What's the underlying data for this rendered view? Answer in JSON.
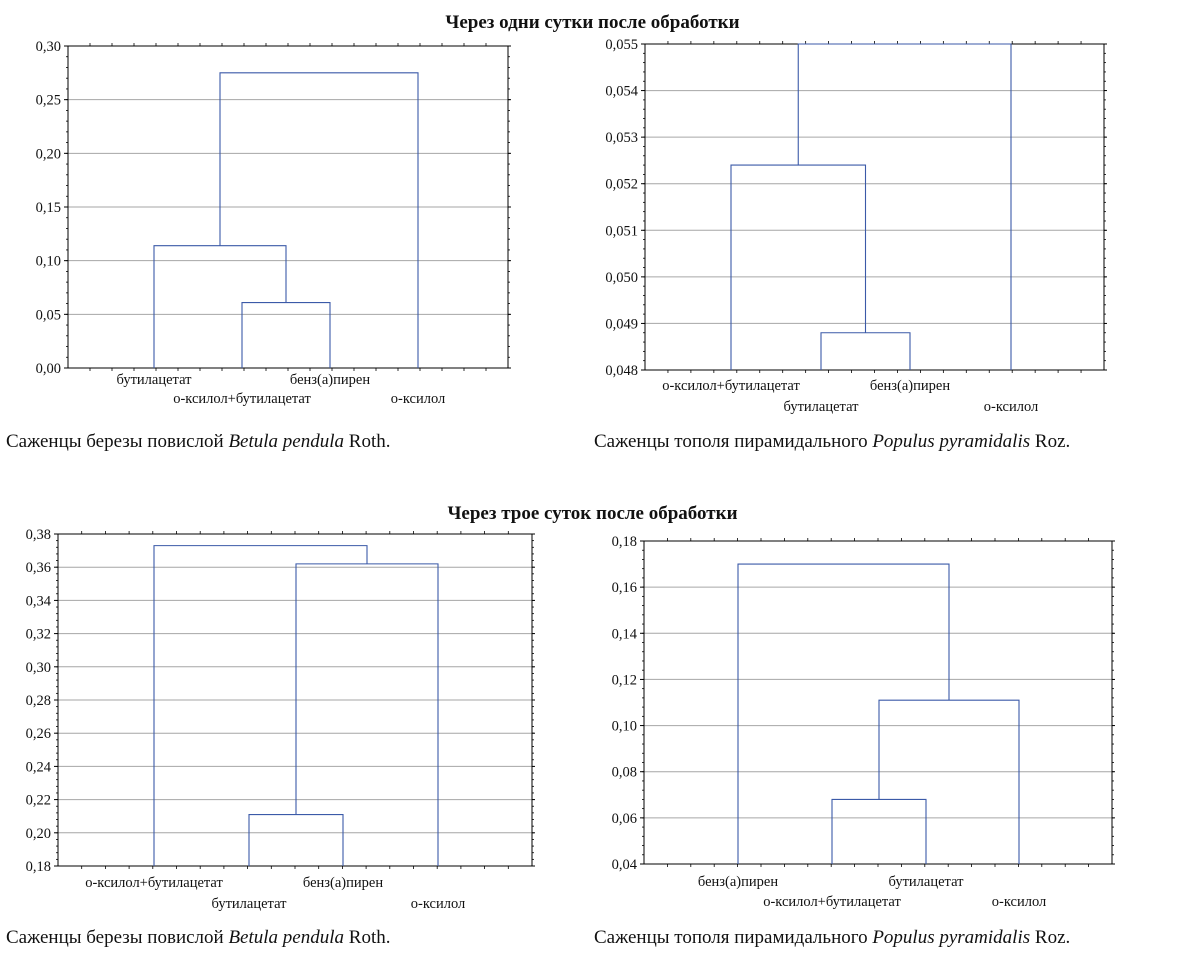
{
  "sections": [
    {
      "title": "Через одни сутки после обработки"
    },
    {
      "title": "Через трое суток после обработки"
    }
  ],
  "captions": [
    {
      "prefix": "Саженцы березы повислой ",
      "species": "Betula pendula",
      "suffix": " Roth."
    },
    {
      "prefix": "Саженцы тополя пирамидального ",
      "species": "Populus pyramidalis",
      "suffix": " Roz."
    },
    {
      "prefix": "Саженцы березы повислой ",
      "species": "Betula pendula",
      "suffix": " Roth."
    },
    {
      "prefix": "Саженцы тополя пирамидального ",
      "species": "Populus pyramidalis",
      "suffix": " Roz."
    }
  ],
  "colors": {
    "link": "#3b5aa8",
    "grid": "#a6a6a6",
    "axis": "#000000"
  },
  "chart_data": [
    {
      "type": "dendrogram",
      "title": "",
      "ylim": [
        0,
        0.3
      ],
      "yticks": [
        "0,00",
        "0,05",
        "0,10",
        "0,15",
        "0,20",
        "0,25",
        "0,30"
      ],
      "grid": true,
      "leaves": [
        "бутилацетат",
        "о-ксилол+бутилацетат",
        "бенз(а)пирен",
        "о-ксилол"
      ],
      "merges": [
        {
          "left": [
            2
          ],
          "right": [
            3
          ],
          "height": 0.061
        },
        {
          "left": [
            1
          ],
          "right": [
            2,
            3
          ],
          "height": 0.114
        },
        {
          "left": [
            1,
            2,
            3
          ],
          "right": [
            4
          ],
          "height": 0.275
        }
      ]
    },
    {
      "type": "dendrogram",
      "title": "",
      "ylim": [
        0.048,
        0.055
      ],
      "yticks": [
        "0,048",
        "0,049",
        "0,050",
        "0,051",
        "0,052",
        "0,053",
        "0,054",
        "0,055"
      ],
      "grid": true,
      "leaves": [
        "о-ксилол+бутилацетат",
        "бутилацетат",
        "бенз(а)пирен",
        "о-ксилол"
      ],
      "merges": [
        {
          "left": [
            2
          ],
          "right": [
            3
          ],
          "height": 0.0488
        },
        {
          "left": [
            1
          ],
          "right": [
            2,
            3
          ],
          "height": 0.0524
        },
        {
          "left": [
            1,
            2,
            3
          ],
          "right": [
            4
          ],
          "height": 0.055
        }
      ]
    },
    {
      "type": "dendrogram",
      "title": "",
      "ylim": [
        0.18,
        0.38
      ],
      "yticks": [
        "0,18",
        "0,20",
        "0,22",
        "0,24",
        "0,26",
        "0,28",
        "0,30",
        "0,32",
        "0,34",
        "0,36",
        "0,38"
      ],
      "grid": true,
      "leaves": [
        "о-ксилол+бутилацетат",
        "бутилацетат",
        "бенз(а)пирен",
        "о-ксилол"
      ],
      "merges": [
        {
          "left": [
            2
          ],
          "right": [
            3
          ],
          "height": 0.211
        },
        {
          "left": [
            2,
            3
          ],
          "right": [
            4
          ],
          "height": 0.362
        },
        {
          "left": [
            1
          ],
          "right": [
            2,
            3,
            4
          ],
          "height": 0.373
        }
      ]
    },
    {
      "type": "dendrogram",
      "title": "",
      "ylim": [
        0.04,
        0.18
      ],
      "yticks": [
        "0,04",
        "0,06",
        "0,08",
        "0,10",
        "0,12",
        "0,14",
        "0,16",
        "0,18"
      ],
      "grid": true,
      "leaves": [
        "бенз(а)пирен",
        "о-ксилол+бутилацетат",
        "бутилацетат",
        "о-ксилол"
      ],
      "merges": [
        {
          "left": [
            2
          ],
          "right": [
            3
          ],
          "height": 0.068
        },
        {
          "left": [
            2,
            3
          ],
          "right": [
            4
          ],
          "height": 0.111
        },
        {
          "left": [
            1
          ],
          "right": [
            2,
            3,
            4
          ],
          "height": 0.17
        }
      ]
    }
  ]
}
